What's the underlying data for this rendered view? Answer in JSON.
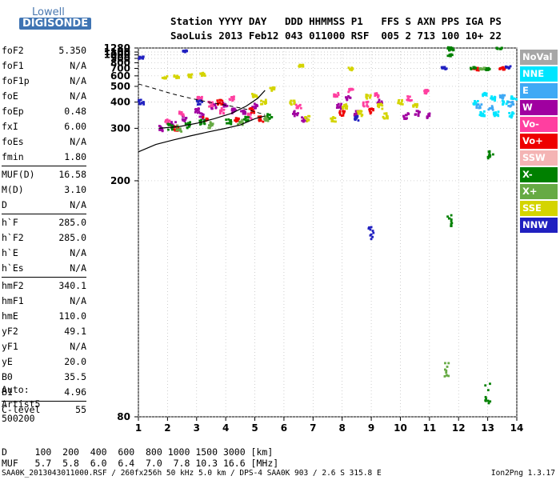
{
  "logo": {
    "line1": "Lowell",
    "line2": "DIGISONDE"
  },
  "header": {
    "labels": "Station YYYY DAY   DDD HHMMSS P1   FFS S AXN PPS IGA PS",
    "values": "SaoLuis 2013 Feb12 043 011000 RSF  005 2 713 100 10+ 22"
  },
  "params": [
    {
      "key": "foF2",
      "value": "5.350"
    },
    {
      "key": "foF1",
      "value": "N/A"
    },
    {
      "key": "foF1p",
      "value": "N/A"
    },
    {
      "key": "foE",
      "value": "N/A"
    },
    {
      "key": "foEp",
      "value": "0.48"
    },
    {
      "key": "fxI",
      "value": "6.00"
    },
    {
      "key": "foEs",
      "value": "N/A"
    },
    {
      "key": "fmin",
      "value": "1.80"
    },
    {
      "key": "MUF(D)",
      "value": "16.58"
    },
    {
      "key": "M(D)",
      "value": "3.10"
    },
    {
      "key": "D",
      "value": "N/A"
    },
    {
      "key": "h`F",
      "value": "285.0"
    },
    {
      "key": "h`F2",
      "value": "285.0"
    },
    {
      "key": "h`E",
      "value": "N/A"
    },
    {
      "key": "h`Es",
      "value": "N/A"
    },
    {
      "key": "hmF2",
      "value": "340.1"
    },
    {
      "key": "hmF1",
      "value": "N/A"
    },
    {
      "key": "hmE",
      "value": "110.0"
    },
    {
      "key": "yF2",
      "value": "49.1"
    },
    {
      "key": "yF1",
      "value": "N/A"
    },
    {
      "key": "yE",
      "value": "20.0"
    },
    {
      "key": "B0",
      "value": "35.5"
    },
    {
      "key": "B1",
      "value": "4.96"
    },
    {
      "key": "C-level",
      "value": "55"
    }
  ],
  "auto": {
    "line1": "Auto:",
    "line2": "Artist5",
    "line3": "500200"
  },
  "legend": [
    {
      "label": "NoVal",
      "color": "#a6a6a6"
    },
    {
      "label": "NNE",
      "color": "#00e5ff"
    },
    {
      "label": "E",
      "color": "#3fa9f5"
    },
    {
      "label": "W",
      "color": "#a000a0"
    },
    {
      "label": "Vo-",
      "color": "#ff3fa0"
    },
    {
      "label": "Vo+",
      "color": "#ee0000"
    },
    {
      "label": "SSW",
      "color": "#f4b4b4"
    },
    {
      "label": "X-",
      "color": "#008000"
    },
    {
      "label": "X+",
      "color": "#66aa44"
    },
    {
      "label": "SSE",
      "color": "#d4d400"
    },
    {
      "label": "NNW",
      "color": "#2020c0"
    }
  ],
  "dtable": {
    "row1": "D     100  200  400  600  800 1000 1500 3000 [km]",
    "row2": "MUF   5.7  5.8  6.0  6.4  7.0  7.8 10.3 16.6 [MHz]"
  },
  "footer": {
    "file": "SAA0K_2013043011000.RSF / 260fx256h 50 kHz 5.0 km / DPS-4 SAA0K 903 / 2.6 S 315.8 E",
    "version": "Ion2Png 1.3.17"
  },
  "chart_data": {
    "type": "scatter",
    "title": "",
    "xlabel": "",
    "ylabel": "",
    "x_ticks": [
      1,
      2,
      3,
      4,
      5,
      6,
      7,
      8,
      9,
      10,
      11,
      12,
      13,
      14
    ],
    "y_ticks": [
      80,
      200,
      300,
      400,
      500,
      600,
      700,
      800,
      900,
      1000,
      1100,
      1280
    ],
    "xlim": [
      1,
      14
    ],
    "ylim": [
      80,
      1280
    ],
    "y_scale": "reciprocal",
    "grid": true,
    "legend_position": "right",
    "series": [
      {
        "name": "W",
        "color": "#a000a0",
        "points": [
          [
            1.8,
            300
          ],
          [
            2.2,
            310
          ],
          [
            2.6,
            330
          ],
          [
            3.0,
            360
          ],
          [
            3.2,
            340
          ],
          [
            3.6,
            380
          ],
          [
            4.0,
            390
          ],
          [
            4.3,
            360
          ],
          [
            4.6,
            350
          ],
          [
            5.0,
            380
          ],
          [
            6.4,
            350
          ],
          [
            6.7,
            330
          ],
          [
            7.9,
            380
          ],
          [
            8.2,
            420
          ],
          [
            8.5,
            350
          ],
          [
            9.3,
            400
          ],
          [
            10.2,
            340
          ],
          [
            10.6,
            350
          ],
          [
            11.0,
            340
          ]
        ]
      },
      {
        "name": "Vo-",
        "color": "#ff3fa0",
        "points": [
          [
            2.0,
            320
          ],
          [
            2.5,
            350
          ],
          [
            3.1,
            420
          ],
          [
            3.5,
            390
          ],
          [
            3.9,
            360
          ],
          [
            4.2,
            420
          ],
          [
            4.8,
            340
          ],
          [
            6.5,
            380
          ],
          [
            7.8,
            440
          ],
          [
            8.3,
            470
          ],
          [
            8.8,
            390
          ],
          [
            9.2,
            440
          ],
          [
            10.3,
            420
          ],
          [
            10.9,
            460
          ]
        ]
      },
      {
        "name": "Vo+",
        "color": "#ee0000",
        "points": [
          [
            2.3,
            300
          ],
          [
            3.3,
            330
          ],
          [
            3.8,
            400
          ],
          [
            4.4,
            330
          ],
          [
            4.9,
            360
          ],
          [
            5.2,
            330
          ],
          [
            8.0,
            350
          ],
          [
            9.0,
            360
          ],
          [
            12.6,
            690
          ],
          [
            13.5,
            700
          ]
        ]
      },
      {
        "name": "X-",
        "color": "#008000",
        "points": [
          [
            2.1,
            305
          ],
          [
            2.7,
            310
          ],
          [
            3.2,
            320
          ],
          [
            4.1,
            320
          ],
          [
            4.7,
            330
          ],
          [
            5.5,
            340
          ],
          [
            11.7,
            1280
          ],
          [
            11.75,
            1200
          ],
          [
            11.7,
            990
          ],
          [
            11.7,
            160
          ],
          [
            12.5,
            700
          ],
          [
            13.0,
            690
          ],
          [
            13.1,
            240
          ],
          [
            13.0,
            85
          ],
          [
            13.4,
            1260
          ]
        ]
      },
      {
        "name": "X+",
        "color": "#66aa44",
        "points": [
          [
            2.4,
            300
          ],
          [
            3.5,
            310
          ],
          [
            4.5,
            320
          ],
          [
            5.4,
            330
          ],
          [
            11.6,
            90
          ],
          [
            12.8,
            700
          ]
        ]
      },
      {
        "name": "SSE",
        "color": "#d4d400",
        "points": [
          [
            1.9,
            580
          ],
          [
            2.3,
            590
          ],
          [
            2.8,
            600
          ],
          [
            3.2,
            620
          ],
          [
            5.0,
            440
          ],
          [
            5.3,
            400
          ],
          [
            5.6,
            480
          ],
          [
            6.3,
            400
          ],
          [
            6.8,
            330
          ],
          [
            7.7,
            330
          ],
          [
            8.1,
            380
          ],
          [
            8.6,
            350
          ],
          [
            8.9,
            430
          ],
          [
            9.3,
            380
          ],
          [
            9.5,
            340
          ],
          [
            10.0,
            400
          ],
          [
            10.5,
            380
          ],
          [
            6.6,
            750
          ],
          [
            8.3,
            690
          ]
        ]
      },
      {
        "name": "NNE",
        "color": "#00e5ff",
        "points": [
          [
            12.6,
            400
          ],
          [
            12.9,
            440
          ],
          [
            13.2,
            420
          ],
          [
            13.6,
            400
          ],
          [
            13.9,
            420
          ],
          [
            12.8,
            350
          ],
          [
            13.3,
            350
          ],
          [
            13.8,
            345
          ]
        ]
      },
      {
        "name": "E",
        "color": "#3fa9f5",
        "points": [
          [
            12.7,
            380
          ],
          [
            13.1,
            370
          ],
          [
            13.5,
            430
          ],
          [
            13.8,
            390
          ]
        ]
      },
      {
        "name": "NNW",
        "color": "#2020c0",
        "points": [
          [
            1.1,
            920
          ],
          [
            1.1,
            400
          ],
          [
            2.6,
            1130
          ],
          [
            3.1,
            400
          ],
          [
            8.5,
            330
          ],
          [
            9.0,
            150
          ],
          [
            11.5,
            700
          ],
          [
            13.7,
            720
          ]
        ]
      }
    ]
  }
}
